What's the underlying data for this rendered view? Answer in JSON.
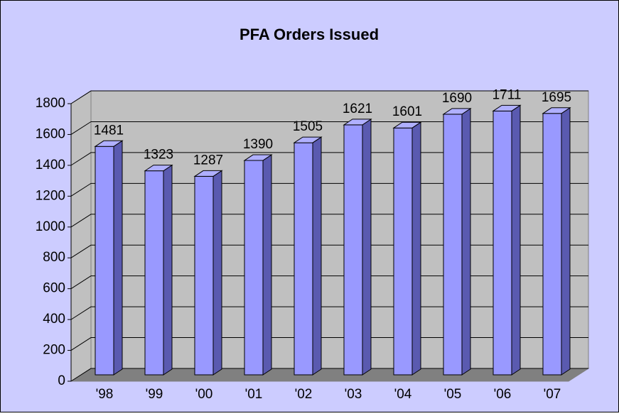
{
  "chart_data": {
    "type": "bar3d",
    "title": "PFA Orders Issued",
    "categories": [
      "'98",
      "'99",
      "'00",
      "'01",
      "'02",
      "'03",
      "'04",
      "'05",
      "'06",
      "'07"
    ],
    "values": [
      1481,
      1323,
      1287,
      1390,
      1505,
      1621,
      1601,
      1690,
      1711,
      1695
    ],
    "color": "#9999ff",
    "ylim": [
      0,
      1800
    ],
    "yticks": [
      0,
      200,
      400,
      600,
      800,
      1000,
      1200,
      1400,
      1600,
      1800
    ],
    "grid": true
  }
}
